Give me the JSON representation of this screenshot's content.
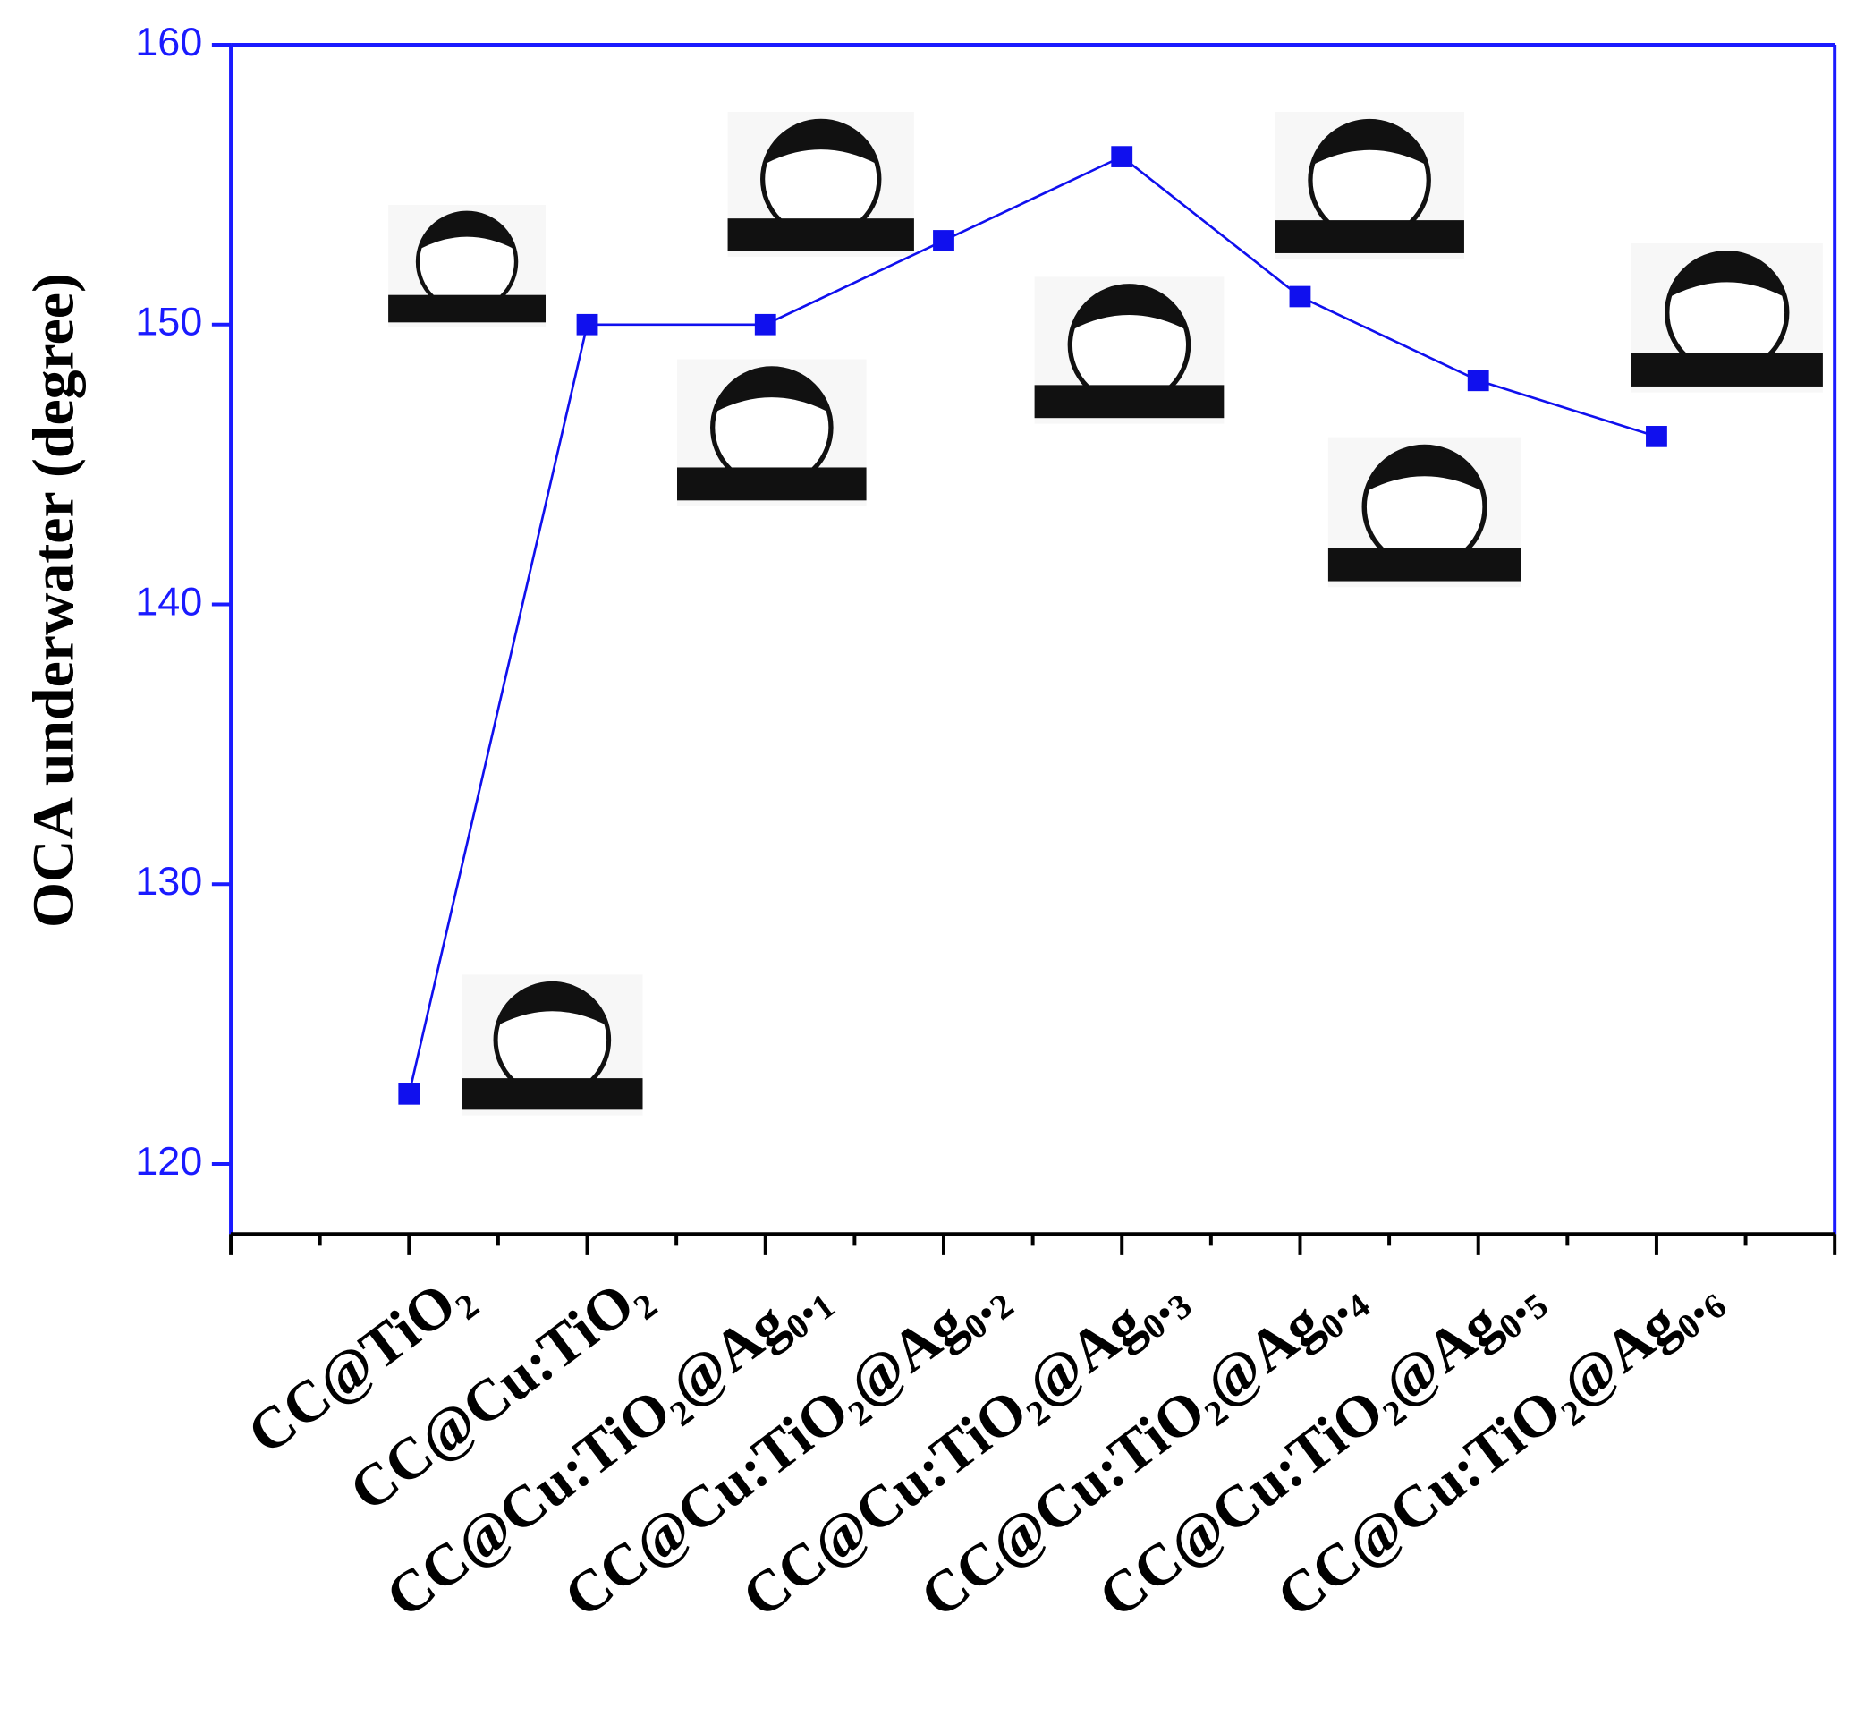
{
  "chart_data": {
    "type": "line",
    "y_label": "OCA underwater (degree)",
    "categories": [
      "CC@TiO₂",
      "CC@Cu:TiO₂",
      "CC@Cu:TiO₂@Ag₀.₁",
      "CC@Cu:TiO₂@Ag₀.₂",
      "CC@Cu:TiO₂@Ag₀.₃",
      "CC@Cu:TiO₂@Ag₀.₄",
      "CC@Cu:TiO₂@Ag₀.₅",
      "CC@Cu:TiO₂@Ag₀.₆"
    ],
    "series": [
      {
        "color": "#1010ee",
        "values": [
          122.5,
          150,
          150,
          153,
          156,
          151,
          148,
          146
        ]
      }
    ],
    "ylim": [
      117.5,
      160
    ],
    "yticks": [
      120,
      130,
      140,
      150,
      160
    ]
  }
}
